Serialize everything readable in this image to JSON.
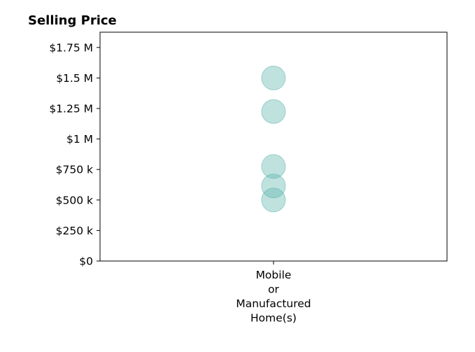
{
  "chart_data": {
    "type": "scatter",
    "title": "Selling Price",
    "xlabel": "",
    "ylabel": "",
    "categories": [
      [
        "Mobile",
        "or",
        "Manufactured",
        "Home(s)"
      ]
    ],
    "ylim": [
      0,
      1875000
    ],
    "y_ticks": [
      {
        "value": 0,
        "label": "$0"
      },
      {
        "value": 250000,
        "label": "$250 k"
      },
      {
        "value": 500000,
        "label": "$500 k"
      },
      {
        "value": 750000,
        "label": "$750 k"
      },
      {
        "value": 1000000,
        "label": "$1 M"
      },
      {
        "value": 1250000,
        "label": "$1.25 M"
      },
      {
        "value": 1500000,
        "label": "$1.5 M"
      },
      {
        "value": 1750000,
        "label": "$1.75 M"
      }
    ],
    "points": [
      {
        "category": 0,
        "value": 1500000
      },
      {
        "category": 0,
        "value": 1225000
      },
      {
        "category": 0,
        "value": 775000
      },
      {
        "category": 0,
        "value": 615000
      },
      {
        "category": 0,
        "value": 500000
      }
    ],
    "marker_color": "#5ab4ac",
    "grid": false,
    "legend": "none"
  }
}
